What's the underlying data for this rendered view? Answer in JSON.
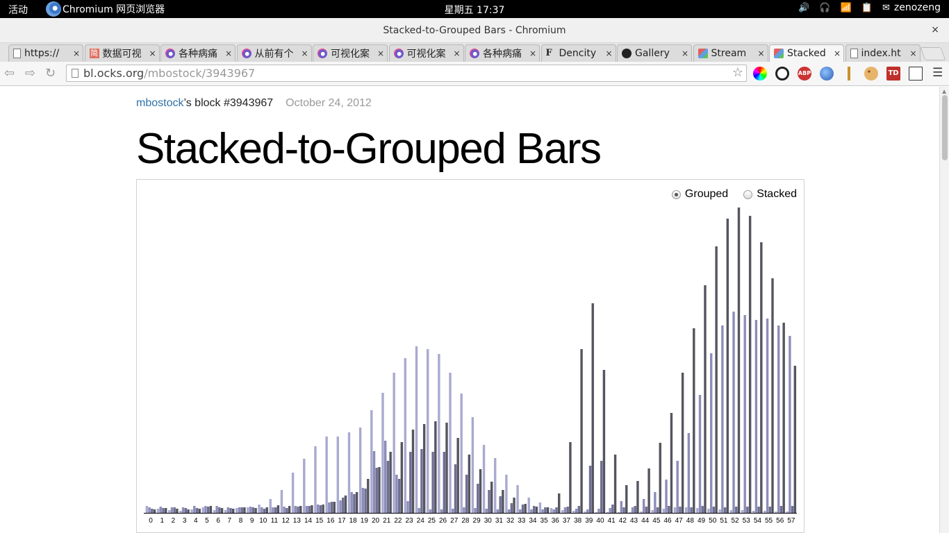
{
  "panel": {
    "activities": "活动",
    "app_name": "Chromium 网页浏览器",
    "clock": "星期五 17:37",
    "user": "zenozeng"
  },
  "window": {
    "title": "Stacked-to-Grouped Bars - Chromium",
    "close": "×"
  },
  "tabs": [
    {
      "label": "https://",
      "icon": "page-icon",
      "active": false
    },
    {
      "label": "数据可视",
      "icon": "jian-icon",
      "active": false
    },
    {
      "label": "各种病痛",
      "icon": "swirl-icon",
      "active": false
    },
    {
      "label": "从前有个",
      "icon": "swirl-icon",
      "active": false
    },
    {
      "label": "可视化案",
      "icon": "swirl-icon",
      "active": false
    },
    {
      "label": "可视化案",
      "icon": "swirl-icon",
      "active": false
    },
    {
      "label": "各种病痛",
      "icon": "swirl-icon",
      "active": false
    },
    {
      "label": "Dencity",
      "icon": "f-icon",
      "active": false
    },
    {
      "label": "Gallery",
      "icon": "github-icon",
      "active": false
    },
    {
      "label": "Stream",
      "icon": "cube-icon",
      "active": false
    },
    {
      "label": "Stacked",
      "icon": "cube-icon",
      "active": true
    },
    {
      "label": "index.ht",
      "icon": "page-icon",
      "active": false
    }
  ],
  "tab_close": "×",
  "toolbar": {
    "url_host": "bl.ocks.org",
    "url_path": "/mbostock/3943967"
  },
  "page": {
    "author": "mbostock",
    "block_text": "’s block #3943967",
    "date": "October 24, 2012",
    "heading": "Stacked-to-Grouped Bars"
  },
  "controls": {
    "grouped_label": "Grouped",
    "stacked_label": "Stacked",
    "selected": "grouped"
  },
  "colors": {
    "series": [
      "#a9aad0",
      "#8c8db8",
      "#6f6f94",
      "#555560"
    ],
    "link": "#3070a8"
  },
  "chart_data": {
    "type": "bar",
    "mode": "grouped",
    "categories": [
      "0",
      "1",
      "2",
      "3",
      "4",
      "5",
      "6",
      "7",
      "8",
      "9",
      "10",
      "11",
      "12",
      "13",
      "14",
      "15",
      "16",
      "17",
      "18",
      "19",
      "20",
      "21",
      "22",
      "23",
      "24",
      "25",
      "26",
      "27",
      "28",
      "29",
      "30",
      "31",
      "32",
      "33",
      "34",
      "35",
      "36",
      "37",
      "38",
      "39",
      "40",
      "41",
      "42",
      "43",
      "44",
      "45",
      "46",
      "47",
      "48",
      "49",
      "50",
      "51",
      "52",
      "53",
      "54",
      "55",
      "56",
      "57"
    ],
    "ylim": [
      0,
      440
    ],
    "series": [
      {
        "values": [
          10,
          6,
          4,
          3,
          5,
          8,
          4,
          4,
          7,
          8,
          12,
          20,
          33,
          58,
          78,
          96,
          110,
          110,
          116,
          123,
          148,
          173,
          202,
          223,
          240,
          236,
          229,
          202,
          172,
          138,
          98,
          79,
          55,
          40,
          22,
          15,
          7,
          4,
          3,
          2,
          1,
          1,
          1,
          1,
          2,
          4,
          6,
          8,
          8,
          7,
          6,
          5,
          4,
          4,
          3,
          3,
          2,
          2
        ]
      },
      {
        "values": [
          8,
          9,
          8,
          8,
          10,
          10,
          10,
          8,
          8,
          9,
          8,
          8,
          9,
          10,
          10,
          12,
          15,
          18,
          30,
          36,
          89,
          104,
          55,
          17,
          7,
          5,
          5,
          6,
          8,
          7,
          6,
          5,
          5,
          5,
          5,
          5,
          5,
          8,
          6,
          5,
          6,
          7,
          17,
          8,
          20,
          30,
          48,
          75,
          115,
          170,
          230,
          270,
          290,
          285,
          278,
          280,
          270,
          255
        ]
      },
      {
        "values": [
          6,
          7,
          8,
          7,
          7,
          9,
          8,
          7,
          8,
          8,
          6,
          8,
          7,
          9,
          10,
          11,
          16,
          22,
          27,
          35,
          65,
          75,
          49,
          88,
          92,
          88,
          88,
          70,
          55,
          42,
          33,
          24,
          14,
          12,
          10,
          8,
          8,
          9,
          10,
          68,
          75,
          12,
          8,
          10,
          9,
          8,
          10,
          9,
          8,
          10,
          9,
          8,
          9,
          9,
          9,
          9,
          10,
          10
        ]
      },
      {
        "values": [
          5,
          7,
          6,
          5,
          6,
          10,
          7,
          6,
          8,
          7,
          8,
          11,
          10,
          10,
          11,
          12,
          16,
          25,
          30,
          49,
          66,
          88,
          102,
          120,
          128,
          132,
          130,
          108,
          84,
          63,
          45,
          33,
          22,
          13,
          9,
          8,
          28,
          102,
          236,
          302,
          206,
          84,
          40,
          46,
          64,
          101,
          144,
          202,
          266,
          328,
          384,
          424,
          440,
          428,
          390,
          338,
          274,
          212
        ]
      }
    ]
  }
}
